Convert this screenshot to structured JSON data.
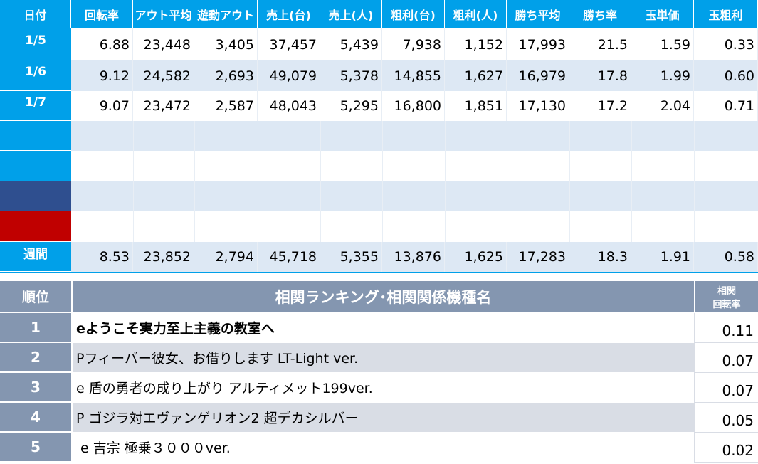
{
  "daily_table": {
    "columns": [
      "日付",
      "回転率",
      "アウト平均",
      "遊動アウト",
      "売上(台)",
      "売上(人)",
      "粗利(台)",
      "粗利(人)",
      "勝ち平均",
      "勝ち率",
      "玉単価",
      "玉粗利"
    ],
    "rows": [
      {
        "date": "1/5",
        "values": [
          "6.88",
          "23,448",
          "3,405",
          "37,457",
          "5,439",
          "7,938",
          "1,152",
          "17,993",
          "21.5",
          "1.59",
          "0.33"
        ]
      },
      {
        "date": "1/6",
        "values": [
          "9.12",
          "24,582",
          "2,693",
          "49,079",
          "5,378",
          "14,855",
          "1,627",
          "16,979",
          "17.8",
          "1.99",
          "0.60"
        ]
      },
      {
        "date": "1/7",
        "values": [
          "9.07",
          "23,472",
          "2,587",
          "48,043",
          "5,295",
          "16,800",
          "1,851",
          "17,130",
          "17.2",
          "2.04",
          "0.71"
        ]
      }
    ],
    "weekly": {
      "date": "週間",
      "values": [
        "8.53",
        "23,852",
        "2,794",
        "45,718",
        "5,355",
        "13,876",
        "1,625",
        "17,283",
        "18.3",
        "1.91",
        "0.58"
      ]
    }
  },
  "ranking_table": {
    "rank_header": "順位",
    "title": "相関ランキング･相関関係機種名",
    "value_header": [
      "相関",
      "回転率"
    ],
    "rows": [
      {
        "rank": "1",
        "name": "eようこそ実力至上主義の教室へ",
        "value": "0.11"
      },
      {
        "rank": "2",
        "name": "Pフィーバー彼女、お借りします LT-Light ver.",
        "value": "0.07"
      },
      {
        "rank": "3",
        "name": "e 盾の勇者の成り上がり アルティメット199ver.",
        "value": "0.07"
      },
      {
        "rank": "4",
        "name": "P ゴジラ対エヴァンゲリオン2 超デカシルバー",
        "value": "0.05"
      },
      {
        "rank": "5",
        "name": " e 吉宗 極乗３０００ver.",
        "value": "0.02"
      }
    ]
  }
}
